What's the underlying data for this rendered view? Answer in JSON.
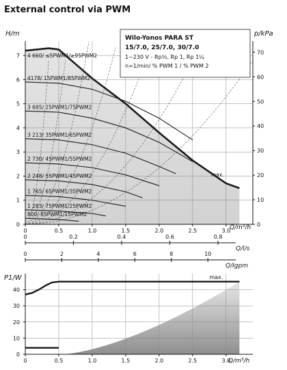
{
  "page_title": "External control via PWM",
  "colors": {
    "background": "#ffffff",
    "top_fill": "#d6d6d6",
    "bottom_gradient_start": "#9a9a9a",
    "bottom_gradient_end": "#ffffff",
    "lines": "#1a1a1a",
    "grid": "#777777"
  },
  "chart_data": [
    {
      "type": "line",
      "title": "Wilo-Yonos PARA ST",
      "legend_lines": [
        "15/7.0, 25/7.0, 30/7.0",
        "1~230 V - Rp½, Rp 1, Rp 1¼",
        "n=1/min/ % PWM 1 / % PWM 2"
      ],
      "xlabel": "Q/m³/h",
      "ylabel_left": "H/m",
      "ylabel_right": "p/kPa",
      "xlim": [
        0,
        3.4
      ],
      "ylim": [
        0,
        7.6
      ],
      "x_ticks": [
        "0",
        "0.5",
        "1.0",
        "1.5",
        "2.0",
        "2.5",
        "3.0"
      ],
      "y_ticks_left": [
        "0",
        "1",
        "2",
        "3",
        "4",
        "5",
        "6",
        "7"
      ],
      "y_ticks_right": [
        "0",
        "10",
        "20",
        "30",
        "40",
        "50",
        "60",
        "70"
      ],
      "grid": true,
      "curves": [
        {
          "label": "4 660/ ≤5PWM1/≥95PWM2",
          "points": [
            [
              0,
              7.2
            ],
            [
              0.35,
              7.3
            ],
            [
              0.5,
              7.25
            ]
          ]
        },
        {
          "label": "4178/ 15PWM1/85PWM2",
          "points": [
            [
              0,
              5.9
            ],
            [
              0.5,
              5.85
            ],
            [
              1.0,
              5.6
            ],
            [
              1.5,
              5.1
            ],
            [
              2.0,
              4.4
            ],
            [
              2.5,
              3.5
            ]
          ]
        },
        {
          "label": "3 695/ 25PWM1/75PWM2",
          "points": [
            [
              0,
              4.7
            ],
            [
              0.5,
              4.65
            ],
            [
              1.0,
              4.4
            ],
            [
              1.5,
              4.0
            ],
            [
              2.0,
              3.4
            ],
            [
              2.5,
              2.6
            ]
          ]
        },
        {
          "label": "3 213/ 35PWM1/65PWM2",
          "points": [
            [
              0,
              3.55
            ],
            [
              0.5,
              3.5
            ],
            [
              1.0,
              3.3
            ],
            [
              1.5,
              2.95
            ],
            [
              2.0,
              2.4
            ],
            [
              2.25,
              2.1
            ]
          ]
        },
        {
          "label": "2 730/ 45PWM1/55PWM2",
          "points": [
            [
              0,
              2.55
            ],
            [
              0.5,
              2.5
            ],
            [
              1.0,
              2.35
            ],
            [
              1.5,
              2.05
            ],
            [
              2.0,
              1.6
            ]
          ]
        },
        {
          "label": "2 248/ 55PWM1/45PWM2",
          "points": [
            [
              0,
              1.85
            ],
            [
              0.5,
              1.8
            ],
            [
              1.0,
              1.65
            ],
            [
              1.5,
              1.35
            ],
            [
              1.75,
              1.1
            ]
          ]
        },
        {
          "label": "1 765/ 65PWM1/35PWM2",
          "points": [
            [
              0,
              1.2
            ],
            [
              0.5,
              1.15
            ],
            [
              1.0,
              1.0
            ],
            [
              1.5,
              0.75
            ]
          ]
        },
        {
          "label": "1 283/ 75PWM1/25PWM2",
          "points": [
            [
              0,
              0.6
            ],
            [
              0.5,
              0.55
            ],
            [
              1.0,
              0.45
            ],
            [
              1.2,
              0.35
            ]
          ]
        },
        {
          "label": "800/ 85PWM1/15PWM2",
          "points": [
            [
              0,
              0.25
            ],
            [
              0.5,
              0.2
            ],
            [
              0.8,
              0.13
            ]
          ]
        },
        {
          "label": "max.",
          "points": [
            [
              0.5,
              7.25
            ],
            [
              1.0,
              6.05
            ],
            [
              1.5,
              5.0
            ],
            [
              2.0,
              3.8
            ],
            [
              2.5,
              2.65
            ],
            [
              3.0,
              1.7
            ],
            [
              3.2,
              1.5
            ]
          ]
        }
      ]
    },
    {
      "type": "axis",
      "xlabel": "Q/l/s",
      "ticks": [
        "0",
        "0.2",
        "0.4",
        "0.6",
        "0.8"
      ]
    },
    {
      "type": "axis",
      "xlabel": "Q/Igpm",
      "ticks": [
        "0",
        "2",
        "4",
        "6",
        "8",
        "10"
      ]
    },
    {
      "type": "line",
      "xlabel": "Q/m³/h",
      "ylabel": "P1/W",
      "xlim": [
        0,
        3.4
      ],
      "ylim": [
        0,
        50
      ],
      "x_ticks": [
        "0",
        "0.5",
        "1.0",
        "1.5",
        "2.0",
        "2.5",
        "3.0"
      ],
      "y_ticks": [
        "0",
        "10",
        "20",
        "30",
        "40"
      ],
      "grid": true,
      "series": [
        {
          "name": "max.",
          "x": [
            0,
            0.1,
            0.2,
            0.3,
            0.4,
            0.5,
            1.0,
            2.0,
            3.0,
            3.2
          ],
          "y": [
            37,
            38,
            40,
            42.5,
            44.5,
            45,
            45,
            45,
            45,
            45
          ]
        },
        {
          "x": [
            0,
            0.5
          ],
          "y": [
            4,
            4
          ]
        }
      ]
    }
  ]
}
